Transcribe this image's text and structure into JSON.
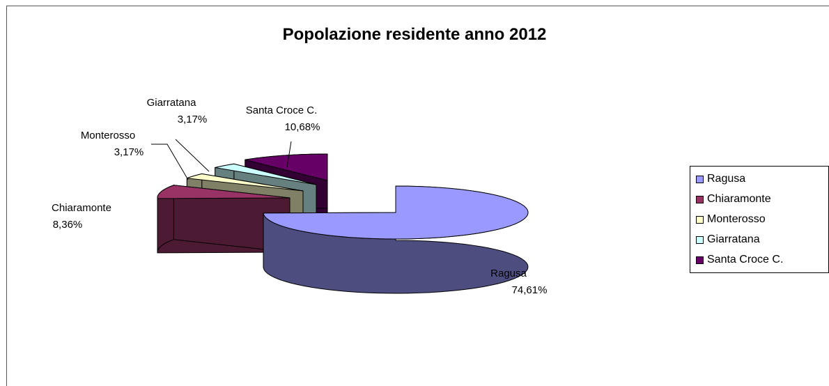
{
  "chart_data": {
    "type": "pie",
    "title": "Popolazione residente anno 2012",
    "categories": [
      "Ragusa",
      "Chiaramonte",
      "Monterosso",
      "Giarratana",
      "Santa Croce C."
    ],
    "values": [
      74.61,
      8.36,
      3.17,
      3.17,
      10.68
    ],
    "labels": [
      "74,61%",
      "8,36%",
      "3,17%",
      "3,17%",
      "10,68%"
    ],
    "colors": [
      "#9999ff",
      "#993366",
      "#ffffcc",
      "#ccffff",
      "#660066"
    ],
    "legend": "right",
    "style": "3d-exploded"
  }
}
